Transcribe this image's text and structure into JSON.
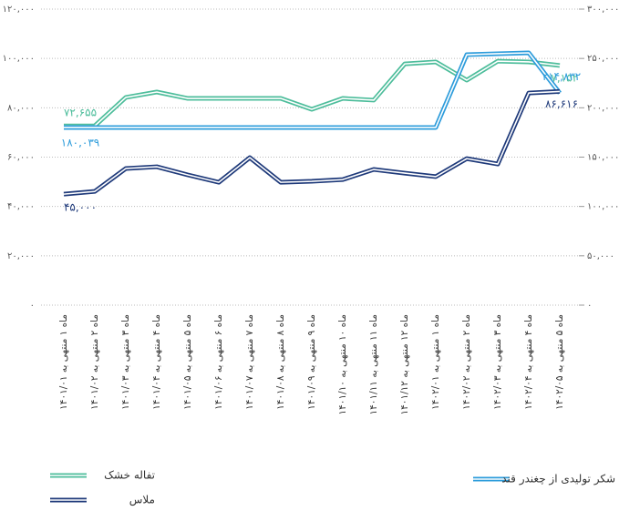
{
  "chart_data": {
    "type": "line",
    "categories": [
      "ماه ۱ منتهی به ۱۴۰۱/۰۱",
      "ماه ۲ منتهی به ۱۴۰۱/۰۲",
      "ماه ۳ منتهی به ۱۴۰۱/۰۳",
      "ماه ۴ منتهی به ۱۴۰۱/۰۴",
      "ماه ۵ منتهی به ۱۴۰۱/۰۵",
      "ماه ۶ منتهی به ۱۴۰۱/۰۶",
      "ماه ۷ منتهی به ۱۴۰۱/۰۷",
      "ماه ۸ منتهی به ۱۴۰۱/۰۸",
      "ماه ۹ منتهی به ۱۴۰۱/۰۹",
      "ماه ۱۰ منتهی به ۱۴۰۱/۱۰",
      "ماه ۱۱ منتهی به ۱۴۰۱/۱۱",
      "ماه ۱۲ منتهی به ۱۴۰۱/۱۲",
      "ماه ۱ منتهی به ۱۴۰۲/۰۱",
      "ماه ۲ منتهی به ۱۴۰۲/۰۲",
      "ماه ۳ منتهی به ۱۴۰۲/۰۳",
      "ماه ۴ منتهی به ۱۴۰۲/۰۴",
      "ماه ۵ منتهی به ۱۴۰۲/۰۵"
    ],
    "series": [
      {
        "name": "تفاله خشک",
        "color": "#4dbd9b",
        "values": [
          72655,
          72700,
          84200,
          86400,
          83800,
          83800,
          83800,
          83800,
          79400,
          83800,
          83100,
          97800,
          98600,
          91200,
          98900,
          98600,
          97152
        ],
        "value_labels": [
          "۷۲,۶۵۵",
          null,
          null,
          null,
          null,
          null,
          null,
          null,
          null,
          null,
          null,
          null,
          null,
          null,
          null,
          null,
          "۹۷,۱۵۲"
        ]
      },
      {
        "name": "شکر تولیدی از چغندر قند",
        "color": "#2d9cdb",
        "axis": "y2",
        "values": [
          180039,
          180039,
          180039,
          180039,
          180039,
          180039,
          180039,
          180039,
          180039,
          180039,
          180039,
          180039,
          180039,
          253800,
          254800,
          255700,
          214832
        ],
        "value_labels": [
          "۱۸۰,۰۳۹",
          null,
          null,
          null,
          null,
          null,
          null,
          null,
          null,
          null,
          null,
          null,
          null,
          null,
          null,
          null,
          "۲۱۴,۸۳۲"
        ]
      },
      {
        "name": "ملاس",
        "color": "#1f3a7a",
        "values": [
          45000,
          46100,
          55400,
          56100,
          52800,
          49800,
          59800,
          49800,
          50200,
          50900,
          55000,
          53500,
          52100,
          59400,
          57200,
          86000,
          86616
        ],
        "value_labels": [
          "۴۵,۰۰۰",
          null,
          null,
          null,
          null,
          null,
          null,
          null,
          null,
          null,
          null,
          null,
          null,
          null,
          null,
          null,
          "۸۶,۶۱۶"
        ]
      }
    ],
    "ylim": [
      0,
      120000
    ],
    "yticks": [
      {
        "value": 0,
        "label": "۰"
      },
      {
        "value": 20000,
        "label": "۲۰,۰۰۰"
      },
      {
        "value": 40000,
        "label": "۴۰,۰۰۰"
      },
      {
        "value": 60000,
        "label": "۶۰,۰۰۰"
      },
      {
        "value": 80000,
        "label": "۸۰,۰۰۰"
      },
      {
        "value": 100000,
        "label": "۱۰۰,۰۰۰"
      },
      {
        "value": 120000,
        "label": "۱۲۰,۰۰۰"
      }
    ],
    "y2lim": [
      0,
      300000
    ],
    "y2ticks": [
      {
        "value": 0,
        "label": "۰"
      },
      {
        "value": 50000,
        "label": "۵۰,۰۰۰"
      },
      {
        "value": 100000,
        "label": "۱۰۰,۰۰۰"
      },
      {
        "value": 150000,
        "label": "۱۵۰,۰۰۰"
      },
      {
        "value": 200000,
        "label": "۲۰۰,۰۰۰"
      },
      {
        "value": 250000,
        "label": "۲۵۰,۰۰۰"
      },
      {
        "value": 300000,
        "label": "۳۰۰,۰۰۰"
      }
    ],
    "grid": true,
    "legend": "bottom"
  }
}
